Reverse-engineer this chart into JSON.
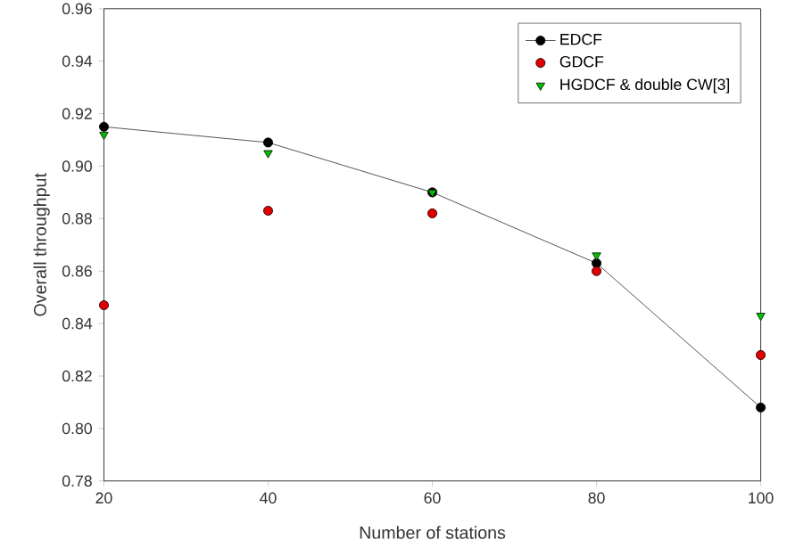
{
  "chart_data": {
    "type": "line",
    "xlabel": "Number of stations",
    "ylabel": "Overall throughput",
    "x": [
      20,
      40,
      60,
      80,
      100
    ],
    "series": [
      {
        "name": "EDCF",
        "color": "#000000",
        "marker": "circle",
        "values": [
          0.915,
          0.909,
          0.89,
          0.863,
          0.808
        ]
      },
      {
        "name": "GDCF",
        "type": "scatter",
        "color": "#e00000",
        "marker": "circle",
        "values": [
          0.847,
          0.883,
          0.882,
          0.86,
          0.828
        ]
      },
      {
        "name": "HGDCF & double CW[3]",
        "type": "scatter",
        "color": "#00c000",
        "marker": "triangle",
        "values": [
          0.912,
          0.905,
          0.89,
          0.866,
          0.843
        ]
      }
    ],
    "xlim": [
      20,
      100
    ],
    "ylim": [
      0.78,
      0.96
    ],
    "xticks": [
      20,
      40,
      60,
      80,
      100
    ],
    "yticks": [
      {
        "value": 0.78,
        "label": "0.78"
      },
      {
        "value": 0.8,
        "label": "0.80"
      },
      {
        "value": 0.82,
        "label": "0.82"
      },
      {
        "value": 0.84,
        "label": "0.84"
      },
      {
        "value": 0.86,
        "label": "0.86"
      },
      {
        "value": 0.88,
        "label": "0.88"
      },
      {
        "value": 0.9,
        "label": "0.90"
      },
      {
        "value": 0.92,
        "label": "0.92"
      },
      {
        "value": 0.94,
        "label": "0.94"
      },
      {
        "value": 0.96,
        "label": "0.96"
      }
    ],
    "legend": "top right",
    "grid": false
  }
}
